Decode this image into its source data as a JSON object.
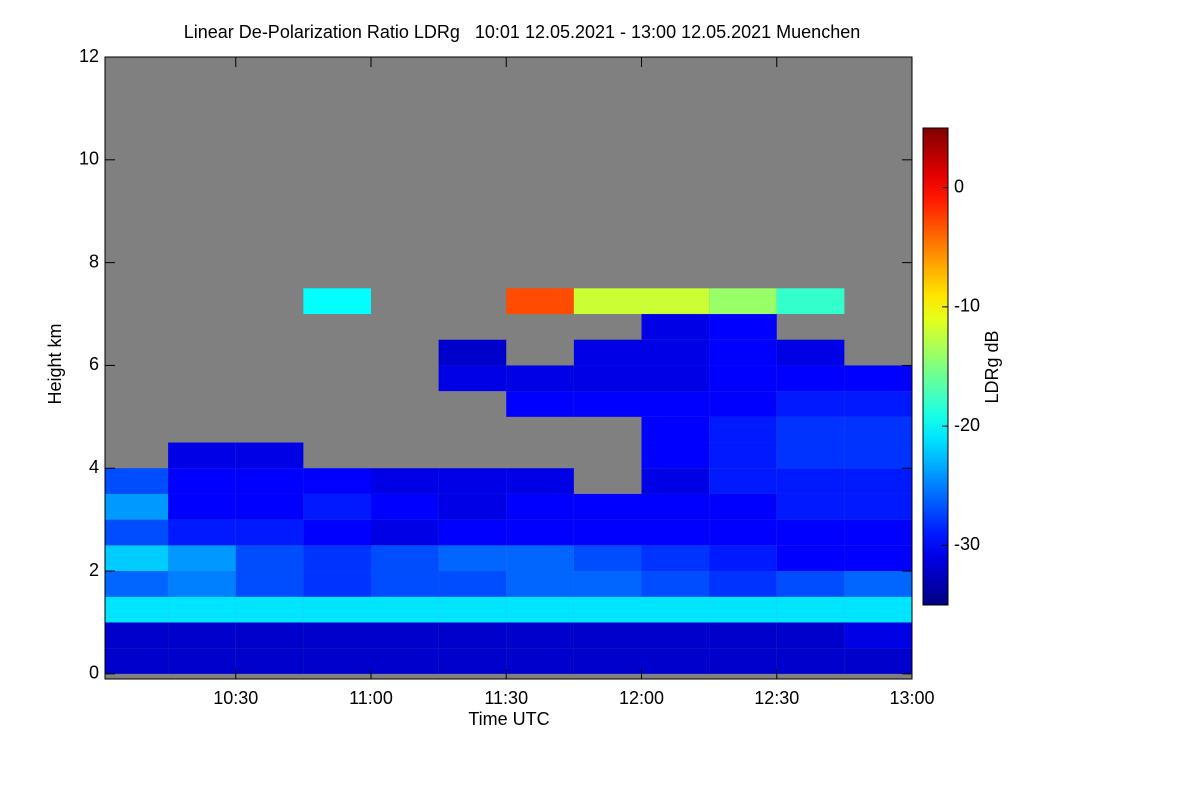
{
  "chart_data": {
    "type": "heatmap",
    "title": "Linear De-Polarization Ratio LDRg   10:01 12.05.2021 - 13:00 12.05.2021 Muenchen",
    "x_label": "Time UTC",
    "y_label": "Height km",
    "colorbar_label": "LDRg dB",
    "x": [
      "10:01",
      "10:15",
      "10:30",
      "10:45",
      "11:00",
      "11:15",
      "11:30",
      "11:45",
      "12:00",
      "12:15",
      "12:30",
      "12:45",
      "13:00"
    ],
    "y": [
      0,
      0.5,
      1,
      1.5,
      2,
      2.5,
      3,
      3.5,
      4,
      4.5,
      5,
      5.5,
      6,
      6.5,
      7,
      7.5
    ],
    "z": [
      [
        -32,
        -32,
        -32,
        -32,
        -32,
        -32,
        -32,
        -32,
        -32,
        -32,
        -32,
        -32
      ],
      [
        -32,
        -32,
        -32,
        -32,
        -32,
        -32,
        -32,
        -32,
        -32,
        -32,
        -32,
        -31
      ],
      [
        -21,
        -21,
        -21,
        -21,
        -21,
        -21,
        -21,
        -21,
        -21,
        -21,
        -21,
        -21
      ],
      [
        -26,
        -25,
        -27,
        -28,
        -27,
        -27,
        -26,
        -26,
        -27,
        -28,
        -27,
        -26
      ],
      [
        -22,
        -24,
        -27,
        -28,
        -27,
        -26,
        -26,
        -27,
        -28,
        -29,
        -30,
        -30
      ],
      [
        -27,
        -29,
        -29,
        -30,
        -31,
        -30,
        -30,
        -30,
        -30,
        -30,
        -30,
        -30
      ],
      [
        -24,
        -30,
        -30,
        -29,
        -30,
        -31,
        -30,
        -30,
        -30,
        -30,
        -29,
        -29
      ],
      [
        -27,
        -30,
        -30,
        -30,
        -31,
        -31,
        -31,
        null,
        -31,
        -29,
        -29,
        -29
      ],
      [
        null,
        -31,
        -31,
        null,
        null,
        null,
        null,
        null,
        -30,
        -29,
        -28,
        -28
      ],
      [
        null,
        null,
        null,
        null,
        null,
        null,
        null,
        null,
        -30,
        -29,
        -28,
        -28
      ],
      [
        null,
        null,
        null,
        null,
        null,
        null,
        -30,
        -30,
        -30,
        -30,
        -29,
        -29
      ],
      [
        null,
        null,
        null,
        null,
        null,
        -31,
        -31,
        -31,
        -31,
        -30,
        -30,
        -30
      ],
      [
        null,
        null,
        null,
        null,
        null,
        -32,
        null,
        -31,
        -31,
        -30,
        -31,
        null
      ],
      [
        null,
        null,
        null,
        null,
        null,
        null,
        null,
        null,
        -31,
        -30,
        null,
        null
      ],
      [
        null,
        null,
        null,
        -20,
        null,
        null,
        -3,
        -12,
        -12,
        -14,
        -18,
        null
      ]
    ],
    "xlim": [
      "10:01",
      "13:00"
    ],
    "xticks": [
      "10:30",
      "11:00",
      "11:30",
      "12:00",
      "12:30",
      "13:00"
    ],
    "ylim": [
      -0.1,
      12
    ],
    "yticks": [
      0,
      2,
      4,
      6,
      8,
      10,
      12
    ],
    "zlim": [
      -35,
      5
    ],
    "zticks": [
      -30,
      -20,
      -10,
      0
    ],
    "colormap": "jet",
    "nodata_color": "#808080"
  }
}
